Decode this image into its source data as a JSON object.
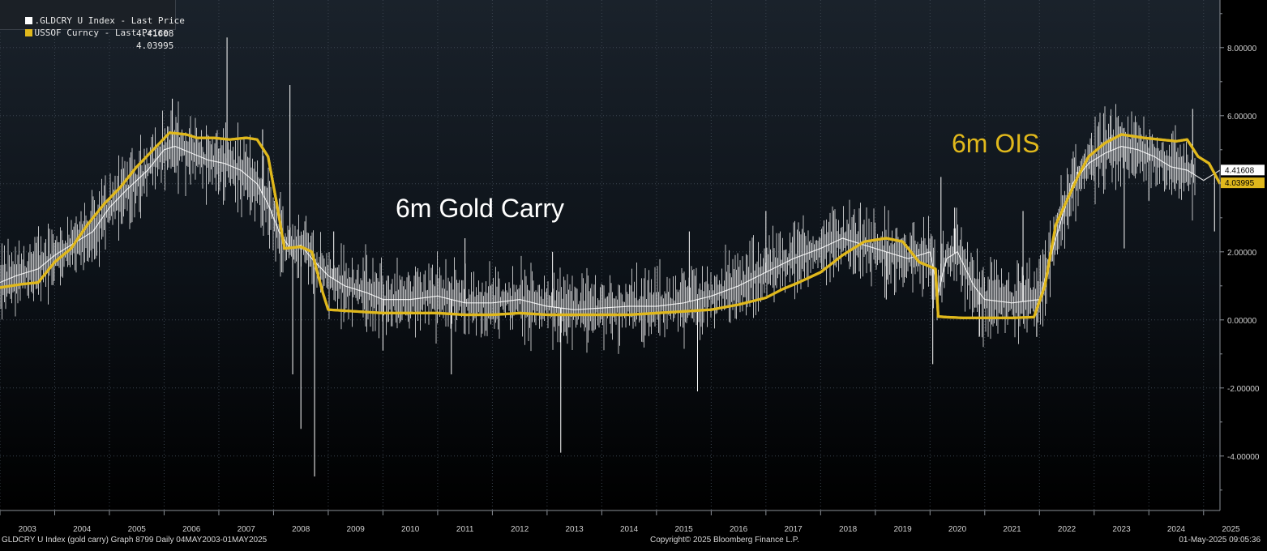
{
  "legend": [
    {
      "name": ".GLDCRY U Index - Last Price",
      "value": "4.41608",
      "color": "#ffffff"
    },
    {
      "name": "USSOF Curncy - Last Price",
      "value": "4.03995",
      "color": "#e0b81c"
    }
  ],
  "annotations": {
    "gold_carry": "6m Gold Carry",
    "ois": "6m OIS"
  },
  "footer": {
    "left": "GLDCRY U Index (gold carry) Graph 8799  Daily 04MAY2003-01MAY2025",
    "center": "Copyright© 2025 Bloomberg Finance L.P.",
    "right": "01-May-2025 09:05:36"
  },
  "chart_data": {
    "type": "line",
    "xlim": [
      2003.0,
      2025.3
    ],
    "ylim": [
      -5.6,
      9.4
    ],
    "x_ticks": [
      "2003",
      "2004",
      "2005",
      "2006",
      "2007",
      "2008",
      "2009",
      "2010",
      "2011",
      "2012",
      "2013",
      "2014",
      "2015",
      "2016",
      "2017",
      "2018",
      "2019",
      "2020",
      "2021",
      "2022",
      "2023",
      "2024",
      "2025"
    ],
    "y_ticks": [
      -4,
      -2,
      0,
      2,
      4,
      6,
      8
    ],
    "y_tick_labels": [
      "-4.00000",
      "-2.00000",
      "0.00000",
      "2.00000",
      "4.00000",
      "6.00000",
      "8.00000"
    ],
    "last_values": [
      {
        "label": "4.41608",
        "y": 4.41608,
        "bg": "#ffffff",
        "fg": "#000000"
      },
      {
        "label": "4.03995",
        "y": 4.03995,
        "bg": "#e0b81c",
        "fg": "#000000"
      }
    ],
    "series": [
      {
        "name": "USSOF Curncy",
        "color": "#e0b81c",
        "x": [
          2003.0,
          2003.4,
          2003.7,
          2004.0,
          2004.3,
          2004.6,
          2004.9,
          2005.2,
          2005.5,
          2005.8,
          2006.1,
          2006.4,
          2006.6,
          2006.9,
          2007.2,
          2007.5,
          2007.7,
          2007.9,
          2008.05,
          2008.2,
          2008.5,
          2008.7,
          2008.9,
          2009.0,
          2009.5,
          2010.0,
          2010.5,
          2011.0,
          2011.5,
          2012.0,
          2012.5,
          2013.0,
          2013.5,
          2014.0,
          2014.5,
          2015.0,
          2015.5,
          2016.0,
          2016.5,
          2017.0,
          2017.3,
          2017.6,
          2018.0,
          2018.4,
          2018.8,
          2019.2,
          2019.5,
          2019.8,
          2020.1,
          2020.15,
          2020.3,
          2020.6,
          2021.0,
          2021.5,
          2021.9,
          2022.1,
          2022.3,
          2022.5,
          2022.7,
          2022.9,
          2023.2,
          2023.5,
          2023.7,
          2023.9,
          2024.2,
          2024.5,
          2024.7,
          2024.9,
          2025.1,
          2025.3
        ],
        "y": [
          0.95,
          1.05,
          1.1,
          1.7,
          2.1,
          2.8,
          3.4,
          3.9,
          4.5,
          5.0,
          5.5,
          5.45,
          5.35,
          5.35,
          5.3,
          5.35,
          5.3,
          4.8,
          3.5,
          2.1,
          2.15,
          2.0,
          0.8,
          0.3,
          0.25,
          0.2,
          0.2,
          0.2,
          0.15,
          0.15,
          0.2,
          0.15,
          0.15,
          0.15,
          0.15,
          0.2,
          0.25,
          0.3,
          0.45,
          0.65,
          0.9,
          1.1,
          1.4,
          1.9,
          2.3,
          2.4,
          2.3,
          1.7,
          1.5,
          0.1,
          0.08,
          0.06,
          0.06,
          0.06,
          0.08,
          1.0,
          2.8,
          3.5,
          4.2,
          4.8,
          5.2,
          5.45,
          5.4,
          5.35,
          5.3,
          5.25,
          5.3,
          4.8,
          4.6,
          4.0
        ]
      },
      {
        "name": ".GLDCRY U Index",
        "color": "#ffffff",
        "x": [
          2003.0,
          2003.3,
          2003.7,
          2004.0,
          2004.3,
          2004.7,
          2005.0,
          2005.3,
          2005.7,
          2006.0,
          2006.2,
          2006.5,
          2006.8,
          2007.1,
          2007.4,
          2007.7,
          2007.9,
          2008.1,
          2008.3,
          2008.5,
          2008.7,
          2009.0,
          2009.3,
          2009.7,
          2010.0,
          2010.5,
          2011.0,
          2011.5,
          2012.0,
          2012.5,
          2013.0,
          2013.5,
          2014.0,
          2014.5,
          2015.0,
          2015.5,
          2016.0,
          2016.5,
          2017.0,
          2017.5,
          2018.0,
          2018.4,
          2018.8,
          2019.2,
          2019.6,
          2020.0,
          2020.15,
          2020.3,
          2020.5,
          2020.8,
          2021.0,
          2021.5,
          2022.0,
          2022.3,
          2022.6,
          2022.9,
          2023.2,
          2023.5,
          2023.8,
          2024.1,
          2024.4,
          2024.7,
          2025.0,
          2025.3
        ],
        "y": [
          1.1,
          1.3,
          1.5,
          1.9,
          2.2,
          2.6,
          3.3,
          3.8,
          4.4,
          5.0,
          5.1,
          4.9,
          4.7,
          4.6,
          4.4,
          4.0,
          3.4,
          2.6,
          2.1,
          2.2,
          1.8,
          1.3,
          1.0,
          0.8,
          0.6,
          0.6,
          0.7,
          0.5,
          0.5,
          0.6,
          0.4,
          0.3,
          0.35,
          0.4,
          0.4,
          0.5,
          0.7,
          1.0,
          1.4,
          1.8,
          2.1,
          2.4,
          2.2,
          2.0,
          1.8,
          2.0,
          0.8,
          1.8,
          2.0,
          1.0,
          0.6,
          0.5,
          0.6,
          2.4,
          4.0,
          4.6,
          4.9,
          5.1,
          5.0,
          4.8,
          4.5,
          4.4,
          4.1,
          4.4
        ]
      }
    ],
    "spikes": [
      {
        "x": 2006.15,
        "y": 6.5
      },
      {
        "x": 2007.15,
        "y": 8.3
      },
      {
        "x": 2007.8,
        "y": 5.6
      },
      {
        "x": 2008.3,
        "y": 6.9
      },
      {
        "x": 2008.35,
        "y": -1.6
      },
      {
        "x": 2008.5,
        "y": -3.2
      },
      {
        "x": 2008.75,
        "y": -4.6
      },
      {
        "x": 2009.1,
        "y": 2.6
      },
      {
        "x": 2010.0,
        "y": -0.9
      },
      {
        "x": 2011.25,
        "y": -1.6
      },
      {
        "x": 2011.5,
        "y": 2.4
      },
      {
        "x": 2013.25,
        "y": -3.9
      },
      {
        "x": 2013.1,
        "y": 2.0
      },
      {
        "x": 2015.6,
        "y": 2.6
      },
      {
        "x": 2015.75,
        "y": -2.1
      },
      {
        "x": 2017.0,
        "y": 3.2
      },
      {
        "x": 2019.2,
        "y": 0.6
      },
      {
        "x": 2020.05,
        "y": -1.3
      },
      {
        "x": 2020.2,
        "y": 4.2
      },
      {
        "x": 2020.45,
        "y": 3.3
      },
      {
        "x": 2020.9,
        "y": -0.5
      },
      {
        "x": 2021.7,
        "y": 3.2
      },
      {
        "x": 2021.95,
        "y": -0.5
      },
      {
        "x": 2022.7,
        "y": 4.5
      },
      {
        "x": 2023.3,
        "y": 6.0
      },
      {
        "x": 2023.55,
        "y": 2.1
      },
      {
        "x": 2024.0,
        "y": 3.5
      },
      {
        "x": 2024.8,
        "y": 6.2
      },
      {
        "x": 2025.2,
        "y": 2.6
      }
    ]
  }
}
